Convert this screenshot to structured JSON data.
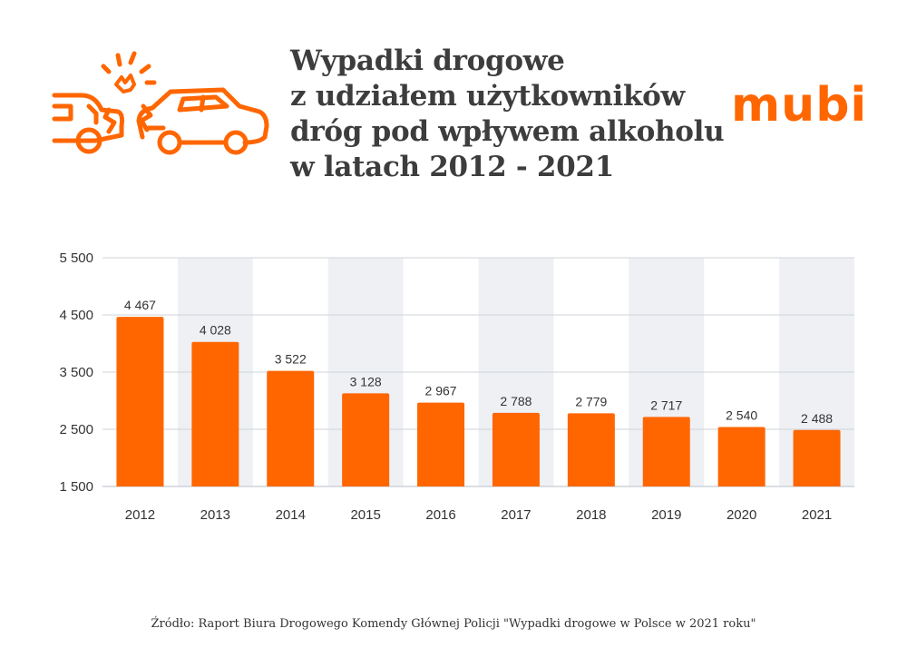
{
  "header": {
    "title_lines": [
      "Wypadki drogowe",
      "z udziałem użytkowników",
      "dróg pod wpływem alkoholu",
      "w latach 2012 - 2021"
    ],
    "logo": "mubi",
    "icon": "car-crash-icon"
  },
  "colors": {
    "bar": "#ff6600",
    "band": "#eef0f4",
    "text": "#333333",
    "grid": "#cfd3da"
  },
  "chart_data": {
    "type": "bar",
    "title": "Wypadki drogowe z udziałem użytkowników dróg pod wpływem alkoholu w latach 2012 - 2021",
    "categories": [
      "2012",
      "2013",
      "2014",
      "2015",
      "2016",
      "2017",
      "2018",
      "2019",
      "2020",
      "2021"
    ],
    "values": [
      4467,
      4028,
      3522,
      3128,
      2967,
      2788,
      2779,
      2717,
      2540,
      2488
    ],
    "value_labels": [
      "4 467",
      "4 028",
      "3 522",
      "3 128",
      "2 967",
      "2 788",
      "2 779",
      "2 717",
      "2 540",
      "2 488"
    ],
    "ylim": [
      1500,
      5500
    ],
    "y_ticks": [
      1500,
      2500,
      3500,
      4500,
      5500
    ],
    "y_tick_labels": [
      "1 500",
      "2 500",
      "3 500",
      "4 500",
      "5 500"
    ],
    "xlabel": "",
    "ylabel": "",
    "grid": true,
    "legend": "none"
  },
  "source": "Źródło: Raport Biura Drogowego Komendy Głównej Policji \"Wypadki drogowe w Polsce w 2021 roku\""
}
